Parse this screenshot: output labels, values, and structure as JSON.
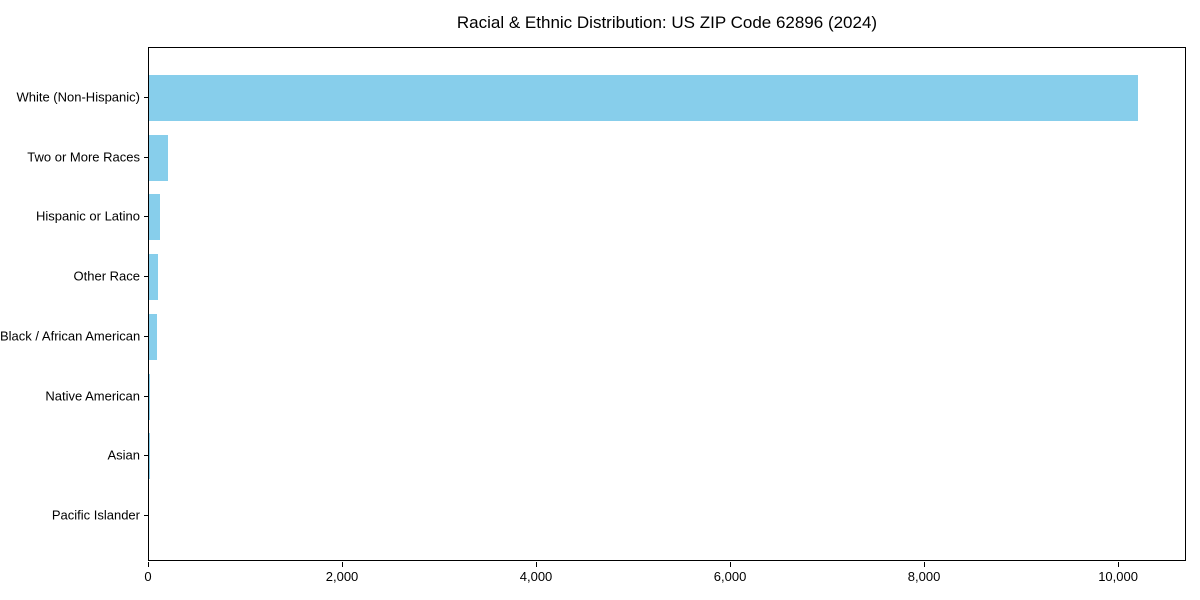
{
  "chart_data": {
    "type": "bar",
    "orientation": "horizontal",
    "title": "Racial & Ethnic Distribution: US ZIP Code 62896 (2024)",
    "categories": [
      "White (Non-Hispanic)",
      "Two or More Races",
      "Hispanic or Latino",
      "Other Race",
      "Black / African American",
      "Native American",
      "Asian",
      "Pacific Islander"
    ],
    "values": [
      10200,
      200,
      110,
      90,
      80,
      15,
      5,
      0
    ],
    "xlabel": "",
    "ylabel": "",
    "xlim": [
      0,
      10700
    ],
    "x_ticks": [
      {
        "value": 0,
        "label": "0"
      },
      {
        "value": 2000,
        "label": "2,000"
      },
      {
        "value": 4000,
        "label": "4,000"
      },
      {
        "value": 6000,
        "label": "6,000"
      },
      {
        "value": 8000,
        "label": "8,000"
      },
      {
        "value": 10000,
        "label": "10,000"
      }
    ],
    "grid": false,
    "legend": false,
    "bar_color": "#87CEEB",
    "axis_color": "#000000",
    "background_color": "#ffffff"
  }
}
